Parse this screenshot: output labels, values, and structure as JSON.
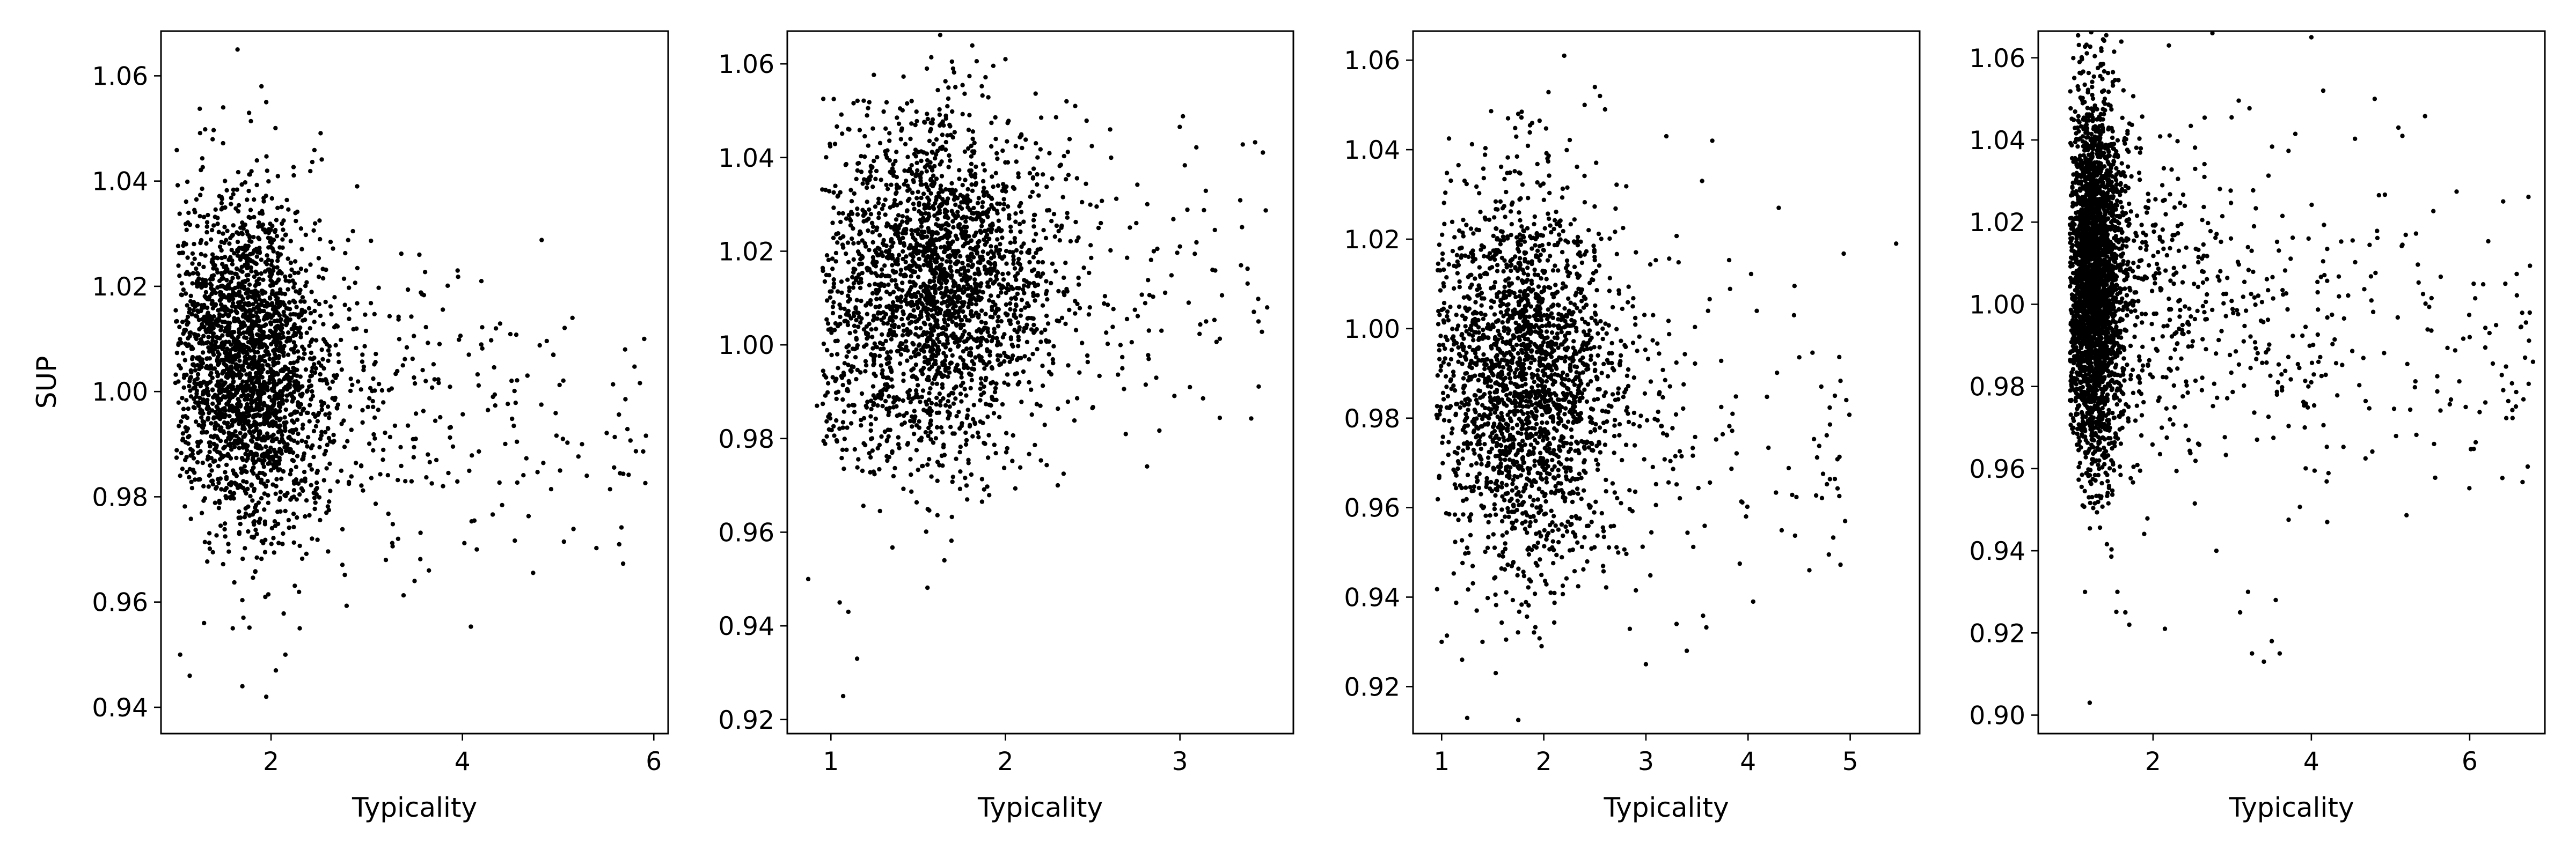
{
  "chart_data": [
    {
      "type": "scatter",
      "xlabel": "Typicality",
      "ylabel": "SUP",
      "xlim": [
        0.85,
        6.15
      ],
      "ylim": [
        0.935,
        1.0685
      ],
      "xticks": [
        2,
        4,
        6
      ],
      "xtick_labels": [
        "2",
        "4",
        "6"
      ],
      "yticks": [
        0.94,
        0.96,
        0.98,
        1.0,
        1.02,
        1.04,
        1.06
      ],
      "ytick_labels": [
        "0.94",
        "0.96",
        "0.98",
        "1.00",
        "1.02",
        "1.04",
        "1.06"
      ],
      "marker_color": "#000000",
      "distribution": {
        "n": 2600,
        "x_min": 1.0,
        "x_mode": 1.7,
        "x_max": 5.95,
        "y_mean": 1.005,
        "y_sd": 0.016,
        "y_slope_per_x": -0.0045
      },
      "points": [
        [
          1.65,
          1.065
        ],
        [
          1.9,
          1.058
        ],
        [
          1.95,
          1.055
        ],
        [
          1.5,
          1.054
        ],
        [
          2.9,
          1.039
        ],
        [
          3.55,
          1.026
        ],
        [
          3.95,
          1.023
        ],
        [
          4.35,
          1.012
        ],
        [
          5.15,
          1.014
        ],
        [
          4.95,
          1.007
        ],
        [
          5.7,
          1.008
        ],
        [
          5.9,
          1.01
        ],
        [
          5.25,
          0.99
        ],
        [
          5.3,
          0.984
        ],
        [
          5.05,
          0.991
        ],
        [
          4.15,
          0.97
        ],
        [
          3.65,
          0.966
        ],
        [
          3.5,
          0.964
        ],
        [
          3.2,
          0.968
        ],
        [
          1.05,
          0.95
        ],
        [
          1.15,
          0.946
        ],
        [
          1.7,
          0.944
        ],
        [
          1.95,
          0.942
        ],
        [
          2.05,
          0.947
        ],
        [
          2.15,
          0.95
        ],
        [
          2.3,
          0.955
        ],
        [
          1.3,
          0.956
        ],
        [
          1.6,
          0.955
        ],
        [
          1.05,
          0.984
        ]
      ]
    },
    {
      "type": "scatter",
      "xlabel": "Typicality",
      "ylabel": "",
      "xlim": [
        0.75,
        3.65
      ],
      "ylim": [
        0.917,
        1.067
      ],
      "xticks": [
        1,
        2,
        3
      ],
      "xtick_labels": [
        "1",
        "2",
        "3"
      ],
      "yticks": [
        0.92,
        0.94,
        0.96,
        0.98,
        1.0,
        1.02,
        1.04,
        1.06
      ],
      "ytick_labels": [
        "0.92",
        "0.94",
        "0.96",
        "0.98",
        "1.00",
        "1.02",
        "1.04",
        "1.06"
      ],
      "marker_color": "#000000",
      "distribution": {
        "n": 2500,
        "x_min": 0.95,
        "x_mode": 1.55,
        "x_max": 3.5,
        "y_mean": 1.012,
        "y_sd": 0.019,
        "y_slope_per_x": 0.002
      },
      "points": [
        [
          2.0,
          1.061
        ],
        [
          1.7,
          1.059
        ],
        [
          1.55,
          1.059
        ],
        [
          2.35,
          1.052
        ],
        [
          2.4,
          1.051
        ],
        [
          2.6,
          1.046
        ],
        [
          3.35,
          1.017
        ],
        [
          3.5,
          1.008
        ],
        [
          3.45,
          1.005
        ],
        [
          3.15,
          1.005
        ],
        [
          3.05,
          1.009
        ],
        [
          2.85,
          1.02
        ],
        [
          3.0,
          1.021
        ],
        [
          2.75,
          1.026
        ],
        [
          0.87,
          0.95
        ],
        [
          1.05,
          0.945
        ],
        [
          1.1,
          0.943
        ],
        [
          1.15,
          0.933
        ],
        [
          1.07,
          0.925
        ],
        [
          0.92,
          0.987
        ],
        [
          1.65,
          0.954
        ],
        [
          2.3,
          0.97
        ]
      ]
    },
    {
      "type": "scatter",
      "xlabel": "Typicality",
      "ylabel": "",
      "xlim": [
        0.72,
        5.68
      ],
      "ylim": [
        0.9095,
        1.0665
      ],
      "xticks": [
        1,
        2,
        3,
        4,
        5
      ],
      "xtick_labels": [
        "1",
        "2",
        "3",
        "4",
        "5"
      ],
      "yticks": [
        0.92,
        0.94,
        0.96,
        0.98,
        1.0,
        1.02,
        1.04,
        1.06
      ],
      "ytick_labels": [
        "0.92",
        "0.94",
        "0.96",
        "0.98",
        "1.00",
        "1.02",
        "1.04",
        "1.06"
      ],
      "marker_color": "#000000",
      "distribution": {
        "n": 2300,
        "x_min": 0.95,
        "x_mode": 1.75,
        "x_max": 5.0,
        "y_mean": 0.99,
        "y_sd": 0.022,
        "y_slope_per_x": -0.005
      },
      "points": [
        [
          2.2,
          1.061
        ],
        [
          2.5,
          1.054
        ],
        [
          2.55,
          1.052
        ],
        [
          2.4,
          1.05
        ],
        [
          2.6,
          1.049
        ],
        [
          1.75,
          1.048
        ],
        [
          1.65,
          1.047
        ],
        [
          3.2,
          1.043
        ],
        [
          3.65,
          1.042
        ],
        [
          4.3,
          1.027
        ],
        [
          5.45,
          1.019
        ],
        [
          3.55,
          1.033
        ],
        [
          1.0,
          0.93
        ],
        [
          1.2,
          0.926
        ],
        [
          1.25,
          0.913
        ],
        [
          1.4,
          0.93
        ],
        [
          3.0,
          0.925
        ],
        [
          3.4,
          0.928
        ],
        [
          3.3,
          0.934
        ],
        [
          4.05,
          0.939
        ],
        [
          4.6,
          0.946
        ],
        [
          4.95,
          0.957
        ],
        [
          4.85,
          0.985
        ],
        [
          4.45,
          1.003
        ]
      ]
    },
    {
      "type": "scatter",
      "xlabel": "Typicality",
      "ylabel": "",
      "xlim": [
        0.55,
        6.95
      ],
      "ylim": [
        0.8955,
        1.0665
      ],
      "xticks": [
        2,
        4,
        6
      ],
      "xtick_labels": [
        "2",
        "4",
        "6"
      ],
      "yticks": [
        0.9,
        0.92,
        0.94,
        0.96,
        0.98,
        1.0,
        1.02,
        1.04,
        1.06
      ],
      "ytick_labels": [
        "0.90",
        "0.92",
        "0.94",
        "0.96",
        "0.98",
        "1.00",
        "1.02",
        "1.04",
        "1.06"
      ],
      "marker_color": "#000000",
      "distribution": {
        "n": 3400,
        "x_min": 0.95,
        "x_mode": 1.25,
        "x_max": 6.8,
        "y_mean": 1.005,
        "y_sd": 0.022,
        "y_slope_per_x": -0.003
      },
      "points": [
        [
          2.75,
          1.066
        ],
        [
          4.0,
          1.065
        ],
        [
          2.2,
          1.063
        ],
        [
          4.15,
          1.052
        ],
        [
          4.8,
          1.05
        ],
        [
          5.1,
          1.043
        ],
        [
          5.15,
          1.041
        ],
        [
          1.2,
          0.903
        ],
        [
          1.65,
          0.925
        ],
        [
          1.7,
          0.922
        ],
        [
          1.55,
          0.93
        ],
        [
          3.1,
          0.925
        ],
        [
          3.25,
          0.915
        ],
        [
          3.4,
          0.913
        ],
        [
          3.5,
          0.918
        ],
        [
          3.55,
          0.928
        ],
        [
          3.6,
          0.915
        ],
        [
          4.2,
          0.947
        ],
        [
          6.05,
          1.005
        ],
        [
          6.45,
          1.005
        ],
        [
          6.7,
          0.987
        ],
        [
          6.8,
          0.986
        ],
        [
          6.0,
          0.992
        ],
        [
          6.25,
          0.993
        ],
        [
          5.95,
          0.975
        ],
        [
          5.55,
          0.966
        ],
        [
          2.15,
          0.921
        ],
        [
          2.8,
          0.94
        ],
        [
          3.2,
          0.93
        ]
      ]
    }
  ]
}
